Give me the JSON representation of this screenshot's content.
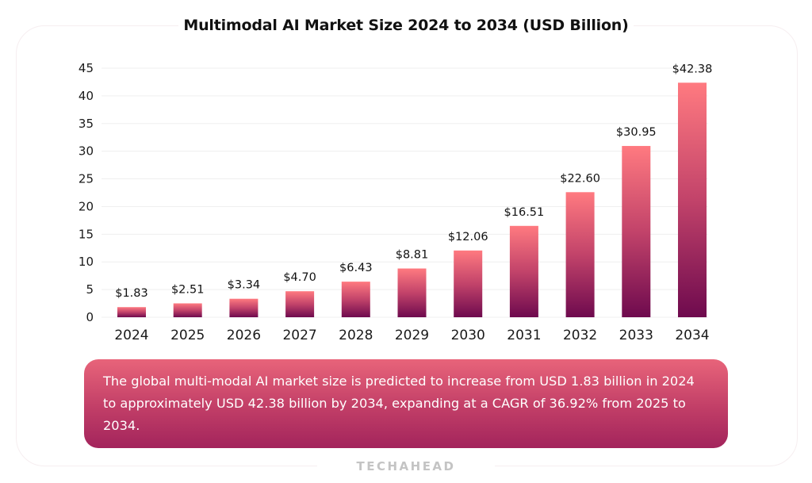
{
  "title": "Multimodal AI Market Size 2024 to 2034 (USD Billion)",
  "chart_data": {
    "type": "bar",
    "title": "Multimodal AI Market Size 2024 to 2034 (USD Billion)",
    "xlabel": "",
    "ylabel": "",
    "categories": [
      "2024",
      "2025",
      "2026",
      "2027",
      "2028",
      "2029",
      "2030",
      "2031",
      "2032",
      "2033",
      "2034"
    ],
    "values": [
      1.83,
      2.51,
      3.34,
      4.7,
      6.43,
      8.81,
      12.06,
      16.51,
      22.6,
      30.95,
      42.38
    ],
    "data_labels": [
      "$1.83",
      "$2.51",
      "$3.34",
      "$4.70",
      "$6.43",
      "$8.81",
      "$12.06",
      "$16.51",
      "$22.60",
      "$30.95",
      "$42.38"
    ],
    "ylim": [
      0,
      45
    ],
    "yticks": [
      0,
      5,
      10,
      15,
      20,
      25,
      30,
      35,
      40,
      45
    ],
    "grid": true,
    "legend": "none",
    "colors": {
      "bar_top": "#ff7a80",
      "bar_mid": "#c2436a",
      "bar_bottom": "#6e0a4e",
      "grid": "#efefef"
    }
  },
  "note": "The global multi-modal AI market size is predicted to increase from USD 1.83 billion in 2024 to approximately USD 42.38 billion by 2034, expanding at a CAGR of 36.92% from 2025 to 2034.",
  "brand": "TECHAHEAD"
}
